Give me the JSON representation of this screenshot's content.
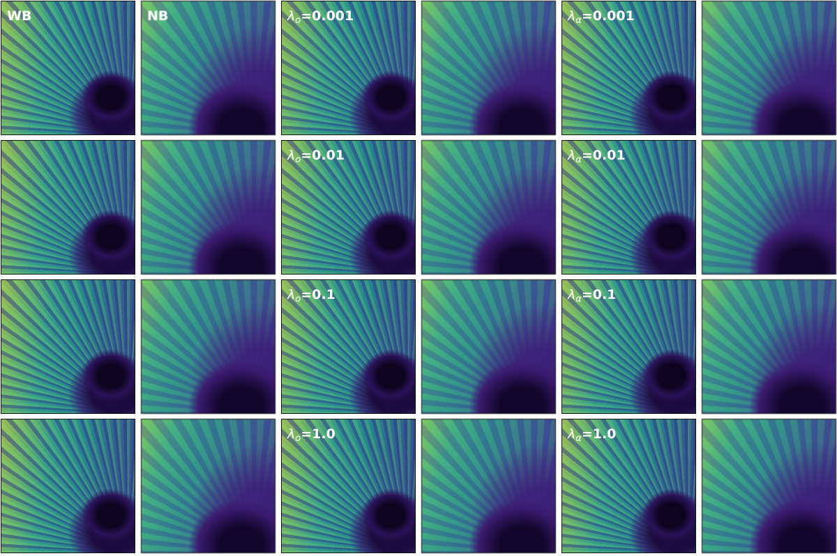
{
  "rows": [
    [
      "WB",
      "NB",
      {
        "symbol": "λ",
        "sub": "o",
        "text": "=0.001"
      },
      null,
      {
        "symbol": "λ",
        "sub": "α",
        "text": "=0.001"
      },
      null
    ],
    [
      null,
      null,
      {
        "symbol": "λ",
        "sub": "o",
        "text": "=0.01"
      },
      null,
      {
        "symbol": "λ",
        "sub": "α",
        "text": "=0.01"
      },
      null
    ],
    [
      null,
      null,
      {
        "symbol": "λ",
        "sub": "o",
        "text": "=0.1"
      },
      null,
      {
        "symbol": "λ",
        "sub": "α",
        "text": "=0.1"
      },
      null
    ],
    [
      null,
      null,
      {
        "symbol": "λ",
        "sub": "o",
        "text": "=1.0"
      },
      null,
      {
        "symbol": "λ",
        "sub": "α",
        "text": "=1.0"
      },
      null
    ]
  ]
}
